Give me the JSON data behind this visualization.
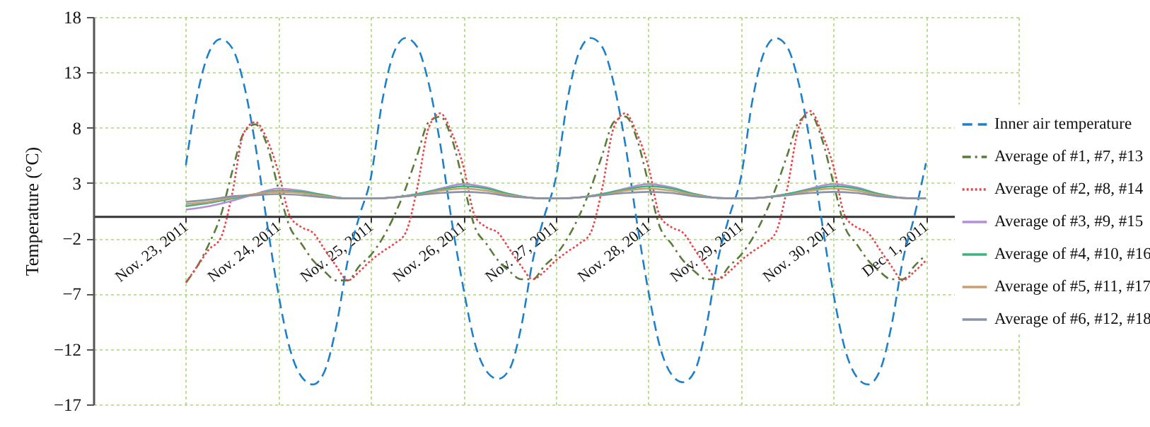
{
  "chart_data": {
    "type": "line",
    "ylabel": "Temperature (°C)",
    "x": [
      "2011-11-23T00:00",
      "2011-11-23T03:00",
      "2011-11-23T06:00",
      "2011-11-23T09:00",
      "2011-11-23T12:00",
      "2011-11-23T15:00",
      "2011-11-23T18:00",
      "2011-11-23T21:00",
      "2011-11-24T00:00",
      "2011-11-24T03:00",
      "2011-11-24T06:00",
      "2011-11-24T09:00",
      "2011-11-24T12:00",
      "2011-11-24T15:00",
      "2011-11-24T18:00",
      "2011-11-24T21:00",
      "2011-11-25T00:00",
      "2011-11-25T03:00",
      "2011-11-25T06:00",
      "2011-11-25T09:00",
      "2011-11-25T12:00",
      "2011-11-25T15:00",
      "2011-11-25T18:00",
      "2011-11-25T21:00",
      "2011-11-26T00:00",
      "2011-11-26T03:00",
      "2011-11-26T06:00",
      "2011-11-26T09:00",
      "2011-11-26T12:00",
      "2011-11-26T15:00",
      "2011-11-26T18:00",
      "2011-11-26T21:00",
      "2011-11-27T00:00",
      "2011-11-27T03:00",
      "2011-11-27T06:00",
      "2011-11-27T09:00",
      "2011-11-27T12:00",
      "2011-11-27T15:00",
      "2011-11-27T18:00",
      "2011-11-27T21:00",
      "2011-11-28T00:00",
      "2011-11-28T03:00",
      "2011-11-28T06:00",
      "2011-11-28T09:00",
      "2011-11-28T12:00",
      "2011-11-28T15:00",
      "2011-11-28T18:00",
      "2011-11-28T21:00",
      "2011-11-29T00:00",
      "2011-11-29T03:00",
      "2011-11-29T06:00",
      "2011-11-29T09:00",
      "2011-11-29T12:00",
      "2011-11-29T15:00",
      "2011-11-29T18:00",
      "2011-11-29T21:00",
      "2011-11-30T00:00",
      "2011-11-30T03:00",
      "2011-11-30T06:00",
      "2011-11-30T09:00",
      "2011-11-30T12:00",
      "2011-11-30T15:00",
      "2011-11-30T18:00",
      "2011-11-30T21:00",
      "2011-12-01T00:00"
    ],
    "series": [
      {
        "name": "Inner air temperature",
        "color": "#1f80c8",
        "line_style": "dashed",
        "values": [
          4.6,
          11,
          14.8,
          16,
          15.2,
          12,
          6.5,
          -0.5,
          -7,
          -12,
          -14.5,
          -15.2,
          -14,
          -10,
          -4,
          0,
          3.5,
          10.5,
          14.8,
          16.1,
          15.3,
          12,
          6.5,
          -0.5,
          -6.5,
          -11.5,
          -14,
          -14.7,
          -13.8,
          -10,
          -4,
          0,
          3.5,
          10.5,
          14.8,
          16.1,
          15.3,
          12,
          6.5,
          -0.5,
          -6.8,
          -11.8,
          -14.3,
          -15,
          -14,
          -10,
          -4,
          0,
          3.5,
          10.5,
          14.8,
          16.1,
          15.3,
          12,
          6.5,
          -0.5,
          -7,
          -12,
          -14.5,
          -15.2,
          -14,
          -10,
          -4,
          0,
          4.8
        ]
      },
      {
        "name": "Average of #1, #7, #13",
        "color": "#5b7b3a",
        "line_style": "dashdot",
        "values": [
          -6,
          -4.5,
          -2.5,
          0,
          4,
          7.5,
          8.3,
          6.5,
          2.5,
          -1,
          -2.5,
          -4,
          -5,
          -5.8,
          -5.8,
          -4.5,
          -3.5,
          -2,
          0,
          2.5,
          5.5,
          8.5,
          9,
          7,
          3,
          -1,
          -2.5,
          -4,
          -5,
          -5.7,
          -5.7,
          -4.5,
          -3.5,
          -2,
          0,
          2.5,
          5.5,
          8.5,
          9,
          7,
          3,
          -1,
          -2.5,
          -4,
          -5,
          -5.7,
          -5.7,
          -4.5,
          -3.5,
          -2,
          0,
          2.5,
          5.5,
          8.5,
          9.2,
          7,
          3,
          -1,
          -2.5,
          -4,
          -5,
          -5.7,
          -5.7,
          -4.5,
          -3.5
        ]
      },
      {
        "name": "Average of #2, #8, #14",
        "color": "#e8474a",
        "line_style": "dotted",
        "values": [
          -6,
          -4.5,
          -3,
          -2,
          2,
          7.5,
          8.5,
          7,
          4,
          0,
          -1,
          -1.5,
          -3,
          -4.5,
          -5.8,
          -5,
          -4,
          -3.2,
          -2.5,
          -1.5,
          2.5,
          8,
          9.3,
          7.5,
          4.5,
          0,
          -1,
          -1.5,
          -3,
          -4.5,
          -5.7,
          -5,
          -4,
          -3.2,
          -2.5,
          -1.5,
          2.5,
          8,
          9.3,
          7.5,
          4.5,
          0,
          -1,
          -1.5,
          -3,
          -4.5,
          -5.7,
          -5,
          -4,
          -3.2,
          -2.5,
          -1.5,
          2.5,
          8,
          9.5,
          7.5,
          4.5,
          0,
          -1,
          -1.5,
          -3,
          -4.5,
          -5.8,
          -5,
          -4
        ]
      },
      {
        "name": "Average of #3, #9, #15",
        "color": "#b48fd6",
        "line_style": "solid",
        "x": [
          "2011-11-23T00:00",
          "2011-11-23T06:00",
          "2011-11-23T12:00",
          "2011-11-23T18:00",
          "2011-11-24T00:00",
          "2011-11-24T06:00",
          "2011-11-24T12:00",
          "2011-11-24T18:00",
          "2011-11-25T00:00",
          "2011-11-25T06:00",
          "2011-11-25T12:00",
          "2011-11-25T18:00",
          "2011-11-26T00:00",
          "2011-11-26T06:00",
          "2011-11-26T12:00",
          "2011-11-26T18:00",
          "2011-11-27T00:00",
          "2011-11-27T06:00",
          "2011-11-27T12:00",
          "2011-11-27T18:00",
          "2011-11-28T00:00",
          "2011-11-28T06:00",
          "2011-11-28T12:00",
          "2011-11-28T18:00",
          "2011-11-29T00:00",
          "2011-11-29T06:00",
          "2011-11-29T12:00",
          "2011-11-29T18:00",
          "2011-11-30T00:00",
          "2011-11-30T06:00",
          "2011-11-30T12:00",
          "2011-11-30T18:00",
          "2011-12-01T00:00"
        ],
        "values": [
          0.6,
          0.9,
          1.4,
          2,
          2.5,
          2.3,
          1.9,
          1.6,
          1.6,
          1.7,
          2,
          2.5,
          2.9,
          2.6,
          2,
          1.65,
          1.6,
          1.7,
          2,
          2.5,
          2.9,
          2.6,
          2,
          1.65,
          1.6,
          1.7,
          2,
          2.5,
          2.9,
          2.6,
          2,
          1.65,
          1.6
        ]
      },
      {
        "name": "Average of #4, #10, #16",
        "color": "#3cb37a",
        "line_style": "solid",
        "x": [
          "2011-11-23T00:00",
          "2011-11-23T06:00",
          "2011-11-23T12:00",
          "2011-11-23T18:00",
          "2011-11-24T00:00",
          "2011-11-24T06:00",
          "2011-11-24T12:00",
          "2011-11-24T18:00",
          "2011-11-25T00:00",
          "2011-11-25T06:00",
          "2011-11-25T12:00",
          "2011-11-25T18:00",
          "2011-11-26T00:00",
          "2011-11-26T06:00",
          "2011-11-26T12:00",
          "2011-11-26T18:00",
          "2011-11-27T00:00",
          "2011-11-27T06:00",
          "2011-11-27T12:00",
          "2011-11-27T18:00",
          "2011-11-28T00:00",
          "2011-11-28T06:00",
          "2011-11-28T12:00",
          "2011-11-28T18:00",
          "2011-11-29T00:00",
          "2011-11-29T06:00",
          "2011-11-29T12:00",
          "2011-11-29T18:00",
          "2011-11-30T00:00",
          "2011-11-30T06:00",
          "2011-11-30T12:00",
          "2011-11-30T18:00",
          "2011-12-01T00:00"
        ],
        "values": [
          0.9,
          1.2,
          1.6,
          2,
          2.3,
          2.2,
          1.9,
          1.6,
          1.6,
          1.7,
          2,
          2.4,
          2.7,
          2.5,
          2,
          1.65,
          1.6,
          1.7,
          2,
          2.4,
          2.7,
          2.5,
          2,
          1.65,
          1.6,
          1.7,
          2,
          2.4,
          2.7,
          2.5,
          2,
          1.65,
          1.6
        ]
      },
      {
        "name": "Average of #5, #11, #17",
        "color": "#c8a070",
        "line_style": "solid",
        "x": [
          "2011-11-23T00:00",
          "2011-11-23T06:00",
          "2011-11-23T12:00",
          "2011-11-23T18:00",
          "2011-11-24T00:00",
          "2011-11-24T06:00",
          "2011-11-24T12:00",
          "2011-11-24T18:00",
          "2011-11-25T00:00",
          "2011-11-25T06:00",
          "2011-11-25T12:00",
          "2011-11-25T18:00",
          "2011-11-26T00:00",
          "2011-11-26T06:00",
          "2011-11-26T12:00",
          "2011-11-26T18:00",
          "2011-11-27T00:00",
          "2011-11-27T06:00",
          "2011-11-27T12:00",
          "2011-11-27T18:00",
          "2011-11-28T00:00",
          "2011-11-28T06:00",
          "2011-11-28T12:00",
          "2011-11-28T18:00",
          "2011-11-29T00:00",
          "2011-11-29T06:00",
          "2011-11-29T12:00",
          "2011-11-29T18:00",
          "2011-11-30T00:00",
          "2011-11-30T06:00",
          "2011-11-30T12:00",
          "2011-11-30T18:00",
          "2011-12-01T00:00"
        ],
        "values": [
          1.1,
          1.3,
          1.7,
          2,
          2.2,
          2.1,
          1.8,
          1.6,
          1.6,
          1.7,
          1.9,
          2.3,
          2.5,
          2.3,
          1.9,
          1.65,
          1.6,
          1.7,
          1.9,
          2.3,
          2.5,
          2.3,
          1.9,
          1.65,
          1.6,
          1.7,
          1.9,
          2.3,
          2.5,
          2.3,
          1.9,
          1.65,
          1.6
        ]
      },
      {
        "name": "Average of #6, #12, #18",
        "color": "#8a93a8",
        "line_style": "solid",
        "x": [
          "2011-11-23T00:00",
          "2011-11-23T06:00",
          "2011-11-23T12:00",
          "2011-11-23T18:00",
          "2011-11-24T00:00",
          "2011-11-24T06:00",
          "2011-11-24T12:00",
          "2011-11-24T18:00",
          "2011-11-25T00:00",
          "2011-11-25T06:00",
          "2011-11-25T12:00",
          "2011-11-25T18:00",
          "2011-11-26T00:00",
          "2011-11-26T06:00",
          "2011-11-26T12:00",
          "2011-11-26T18:00",
          "2011-11-27T00:00",
          "2011-11-27T06:00",
          "2011-11-27T12:00",
          "2011-11-27T18:00",
          "2011-11-28T00:00",
          "2011-11-28T06:00",
          "2011-11-28T12:00",
          "2011-11-28T18:00",
          "2011-11-29T00:00",
          "2011-11-29T06:00",
          "2011-11-29T12:00",
          "2011-11-29T18:00",
          "2011-11-30T00:00",
          "2011-11-30T06:00",
          "2011-11-30T12:00",
          "2011-11-30T18:00",
          "2011-12-01T00:00"
        ],
        "values": [
          1.3,
          1.5,
          1.8,
          1.9,
          2,
          1.9,
          1.7,
          1.6,
          1.6,
          1.7,
          1.9,
          2.1,
          2.2,
          2.1,
          1.8,
          1.65,
          1.6,
          1.7,
          1.9,
          2.1,
          2.2,
          2.1,
          1.8,
          1.65,
          1.6,
          1.7,
          1.9,
          2.1,
          2.2,
          2.1,
          1.8,
          1.65,
          1.6
        ]
      }
    ],
    "xlim": [
      "2011-11-22",
      "2011-12-02"
    ],
    "xticks": [
      {
        "value": "2011-11-23",
        "label": "Nov. 23, 2011"
      },
      {
        "value": "2011-11-24",
        "label": "Nov. 24, 2011"
      },
      {
        "value": "2011-11-25",
        "label": "Nov. 25, 2011"
      },
      {
        "value": "2011-11-26",
        "label": "Nov. 26, 2011"
      },
      {
        "value": "2011-11-27",
        "label": "Nov. 27, 2011"
      },
      {
        "value": "2011-11-28",
        "label": "Nov. 28, 2011"
      },
      {
        "value": "2011-11-29",
        "label": "Nov. 29, 2011"
      },
      {
        "value": "2011-11-30",
        "label": "Nov. 30, 2011"
      },
      {
        "value": "2011-12-01",
        "label": "Dec. 1, 2011"
      },
      {
        "value": "2011-12-02",
        "label": null
      }
    ],
    "ylim": [
      -17,
      18
    ],
    "yticks": [
      {
        "value": -17,
        "label": "−17"
      },
      {
        "value": -12,
        "label": "−12"
      },
      {
        "value": -7,
        "label": "−7"
      },
      {
        "value": -2,
        "label": "−2"
      },
      3,
      8,
      13,
      18
    ],
    "grid": true,
    "legend": "right"
  }
}
